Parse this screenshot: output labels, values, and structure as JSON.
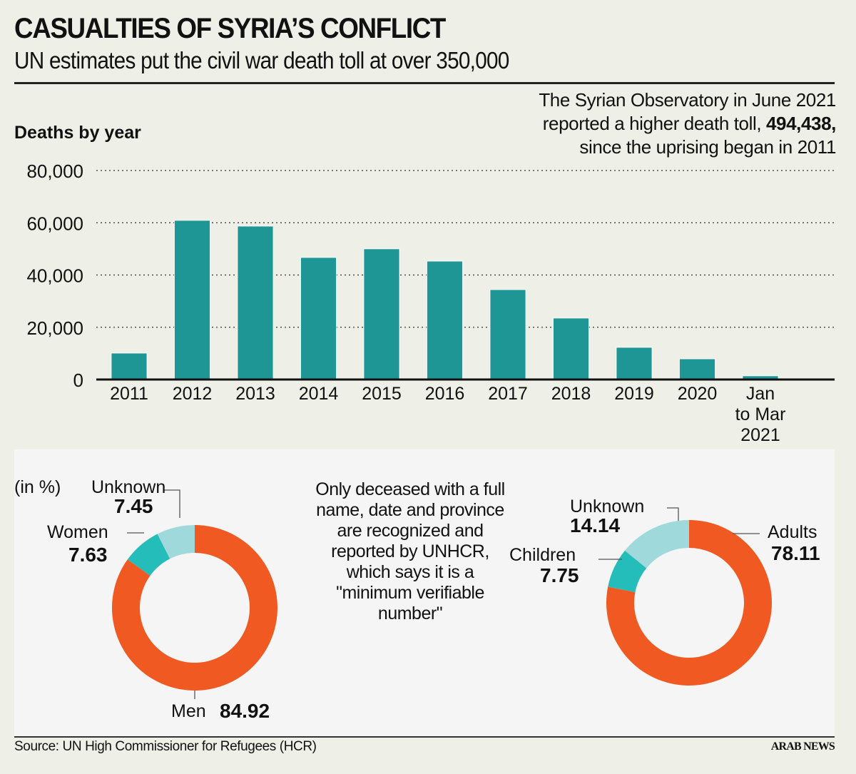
{
  "header": {
    "title": "CASUALTIES OF SYRIA’S CONFLICT",
    "subtitle": "UN estimates put the civil war death toll at over 350,000"
  },
  "note": {
    "line1": "The Syrian Observatory in June 2021",
    "line2_pre": "reported a higher death toll, ",
    "line2_bold": "494,438,",
    "line3": "since the uprising began in 2011"
  },
  "center_note": "Only deceased with a full name, date and province are recognized and reported by UNHCR, which says it is a \"minimum verifiable number\"",
  "footer": {
    "source": "Source: UN High Commissioner for Refugees (HCR)",
    "logo": "ARAB NEWS"
  },
  "colors": {
    "bar": "#1f9696",
    "orange": "#f05a22",
    "teal": "#24bdb9",
    "light_teal": "#a0d9dc",
    "background": "#eef0e8",
    "panel": "#f5f5f5"
  },
  "chart_data": [
    {
      "type": "bar",
      "title": "Deaths by year",
      "xlabel": "",
      "ylabel": "",
      "categories": [
        "2011",
        "2012",
        "2013",
        "2014",
        "2015",
        "2016",
        "2017",
        "2018",
        "2019",
        "2020",
        "Jan to Mar 2021"
      ],
      "category_lines": [
        [
          "2011"
        ],
        [
          "2012"
        ],
        [
          "2013"
        ],
        [
          "2014"
        ],
        [
          "2015"
        ],
        [
          "2016"
        ],
        [
          "2017"
        ],
        [
          "2018"
        ],
        [
          "2019"
        ],
        [
          "2020"
        ],
        [
          "Jan",
          "to Mar",
          "2021"
        ]
      ],
      "values": [
        10100,
        60900,
        58700,
        46700,
        50000,
        45300,
        34400,
        23500,
        12300,
        7900,
        1400
      ],
      "ylim": [
        0,
        80000
      ],
      "yticks": [
        0,
        20000,
        40000,
        60000,
        80000
      ],
      "ytick_labels": [
        "0",
        "20,000",
        "40,000",
        "60,000",
        "80,000"
      ],
      "grid": true,
      "grid_style": "dotted"
    },
    {
      "type": "pie",
      "style": "donut",
      "title": "(in %)",
      "slices": [
        {
          "label": "Men",
          "value": 84.92,
          "value_label": "84.92",
          "color": "#f05a22"
        },
        {
          "label": "Women",
          "value": 7.63,
          "value_label": "7.63",
          "color": "#24bdb9"
        },
        {
          "label": "Unknown",
          "value": 7.45,
          "value_label": "7.45",
          "color": "#a0d9dc"
        }
      ]
    },
    {
      "type": "pie",
      "style": "donut",
      "title": "",
      "slices": [
        {
          "label": "Adults",
          "value": 78.11,
          "value_label": "78.11",
          "color": "#f05a22"
        },
        {
          "label": "Children",
          "value": 7.75,
          "value_label": "7.75",
          "color": "#24bdb9"
        },
        {
          "label": "Unknown",
          "value": 14.14,
          "value_label": "14.14",
          "color": "#a0d9dc"
        }
      ]
    }
  ]
}
